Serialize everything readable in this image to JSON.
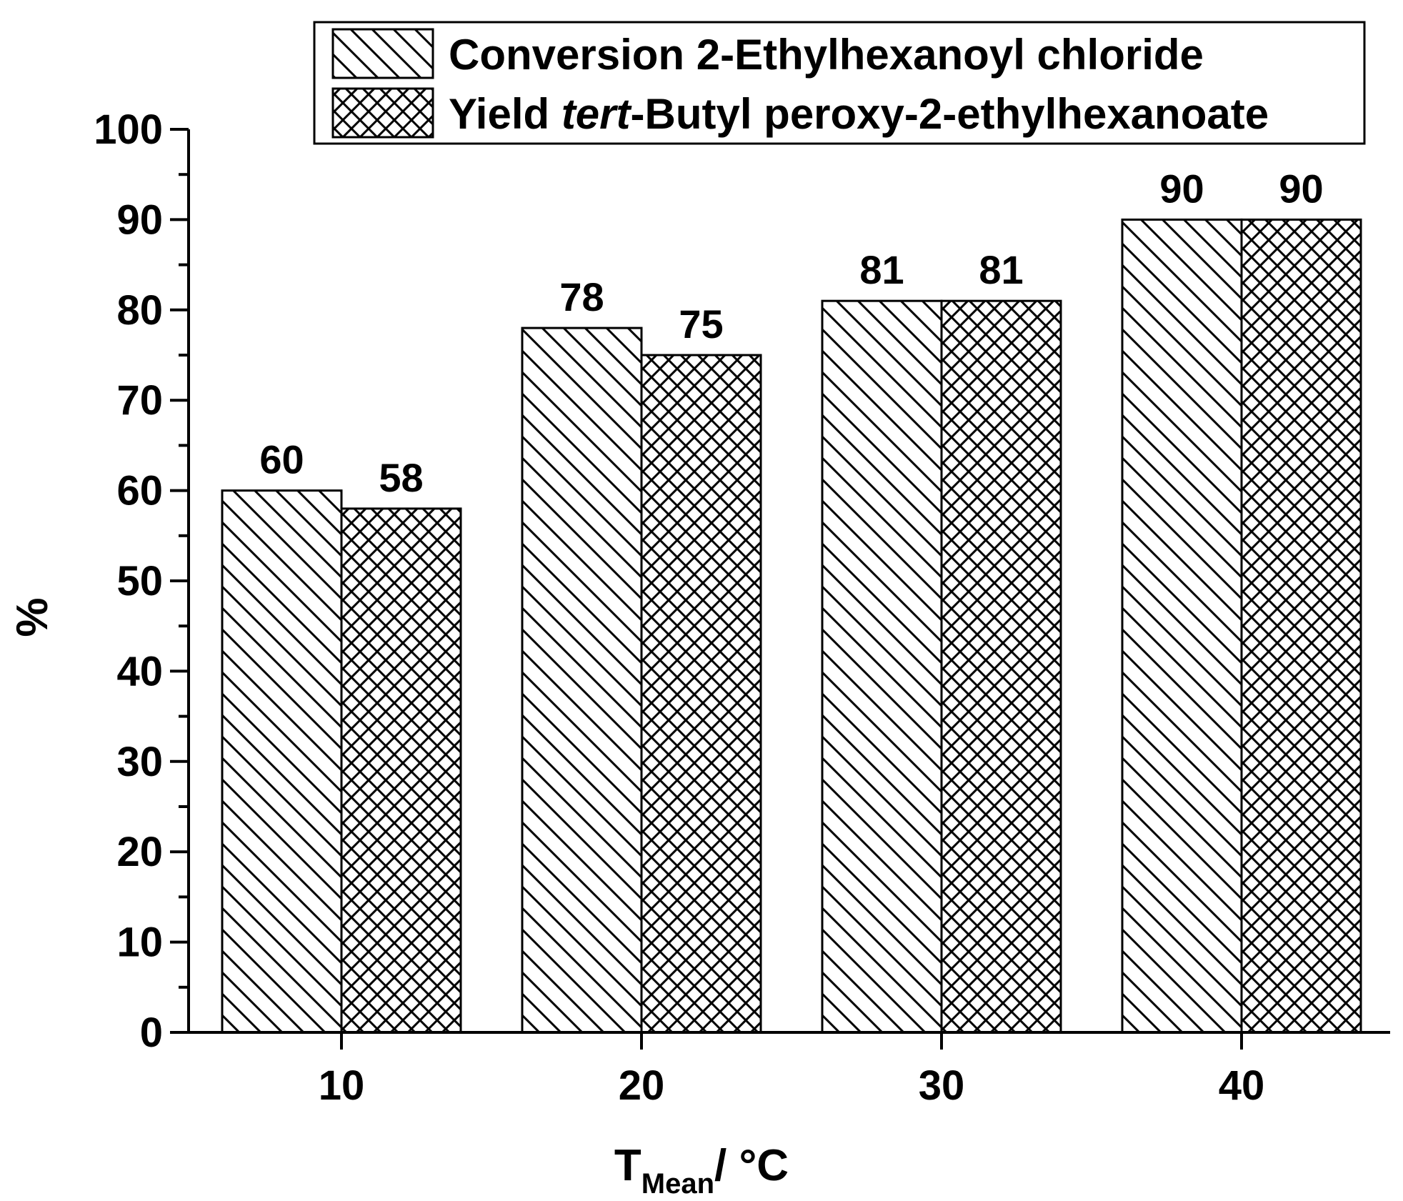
{
  "chart_data": {
    "type": "bar",
    "categories": [
      "10",
      "20",
      "30",
      "40"
    ],
    "series": [
      {
        "name_parts": [
          {
            "text": "Conversion 2-Ethylhexanoyl chloride",
            "italic": false
          }
        ],
        "values": [
          60,
          78,
          81,
          90
        ],
        "pattern": "diagonal"
      },
      {
        "name_parts": [
          {
            "text": "Yield ",
            "italic": false
          },
          {
            "text": "tert",
            "italic": true
          },
          {
            "text": "-Butyl peroxy-2-ethylhexanoate",
            "italic": false
          }
        ],
        "values": [
          58,
          75,
          81,
          90
        ],
        "pattern": "crosshatch"
      }
    ],
    "xlabel": {
      "main": "T",
      "subscript": "Mean",
      "suffix": "/ °C"
    },
    "ylabel": "%",
    "ylim": [
      0,
      100
    ],
    "yticks": [
      0,
      10,
      20,
      30,
      40,
      50,
      60,
      70,
      80,
      90,
      100
    ],
    "data_labels": true,
    "legend_position": "top-right",
    "grid": false
  }
}
